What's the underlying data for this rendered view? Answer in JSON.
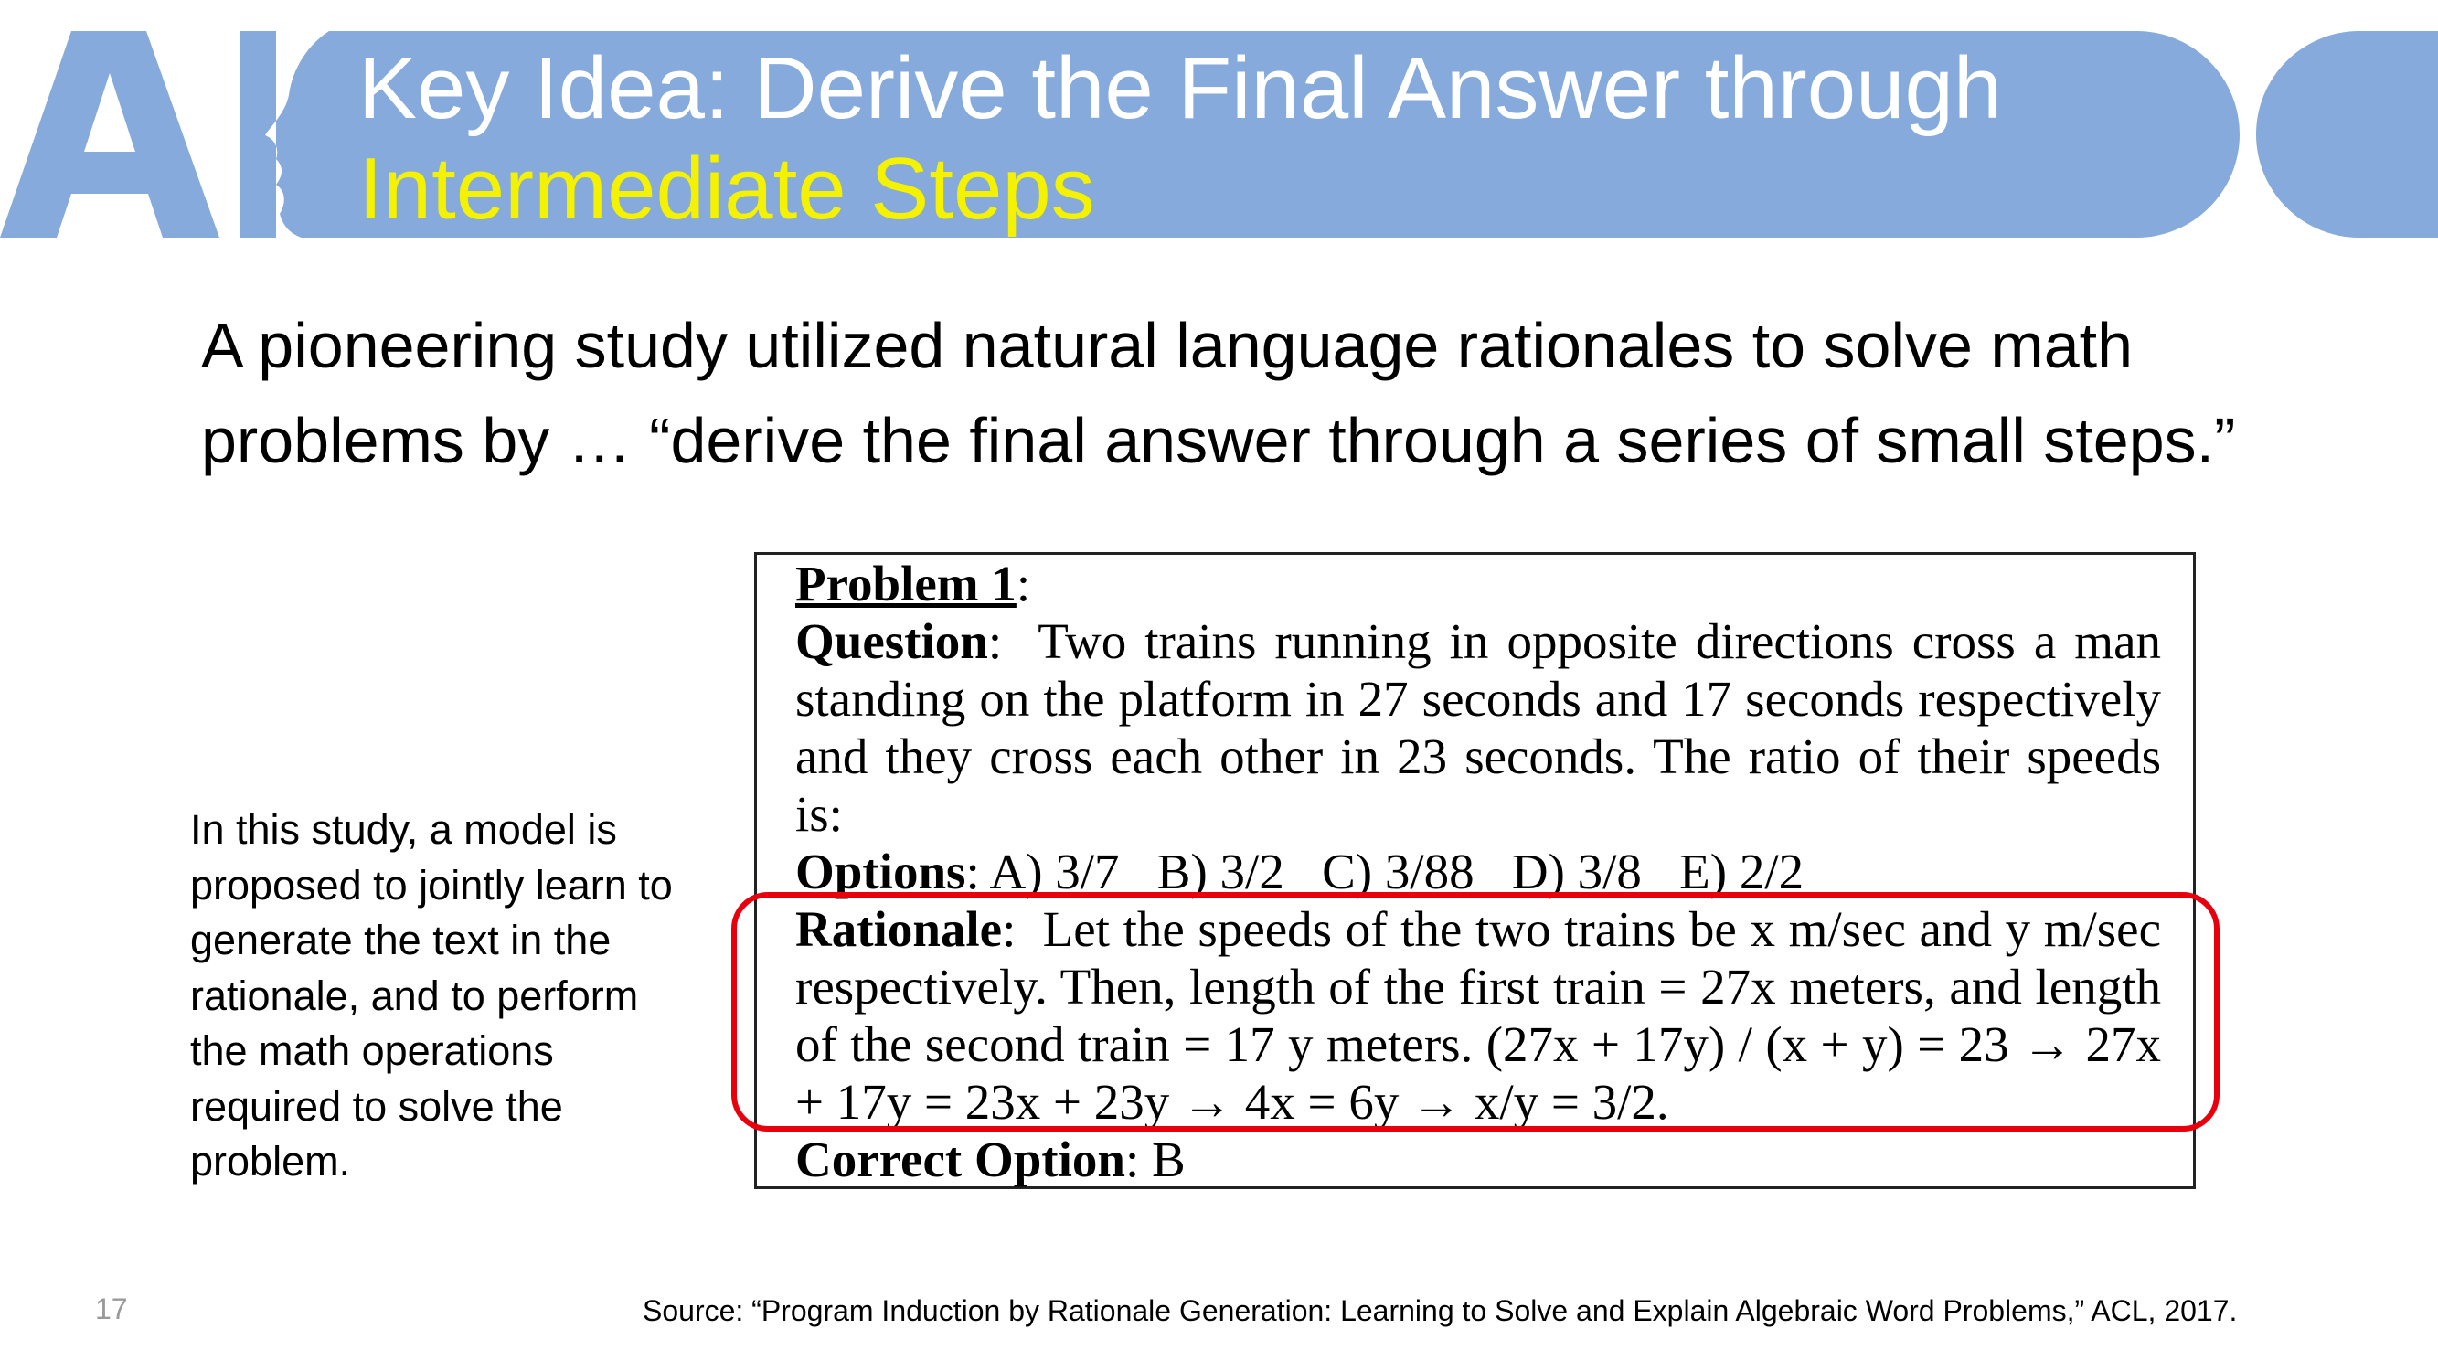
{
  "slide": {
    "number": "17",
    "title_line1": "Key Idea: Derive the Final Answer through",
    "title_line2": "Intermediate Steps",
    "logo_text": "AI",
    "intro": "A pioneering study utilized natural language rationales to solve math problems by … “derive the final answer through a series of small steps.”",
    "side_note": "In this study, a model is proposed to jointly learn to generate the text in the rationale, and to perform the math operations required to solve the problem.",
    "source": "Source: “Program Induction by Rationale Generation: Learning to Solve and Explain Algebraic Word Problems,” ACL, 2017."
  },
  "problem": {
    "heading": "Problem 1",
    "question_label": "Question",
    "question_text": "Two trains running in opposite directions cross a man standing on the platform in 27 seconds and 17 seconds respectively and they cross each other in 23 seconds. The ratio of their speeds is:",
    "options_label": "Options",
    "options_text": "A) 3/7   B) 3/2   C) 3/88   D) 3/8   E) 2/2",
    "rationale_label": "Rationale",
    "rationale_text": "Let the speeds of the two trains be x m/sec and y m/sec respectively. Then, length of the first train = 27x meters, and length of the second train = 17 y meters. (27x + 17y) / (x + y) = 23 → 27x + 17y = 23x + 23y → 4x = 6y → x/y = 3/2.",
    "correct_label": "Correct Option",
    "correct_value": "B"
  },
  "colors": {
    "title_bar": "#85aadb",
    "title_text": "#ffffff",
    "title_highlight": "#f5f200",
    "highlight_border": "#e8000d"
  }
}
